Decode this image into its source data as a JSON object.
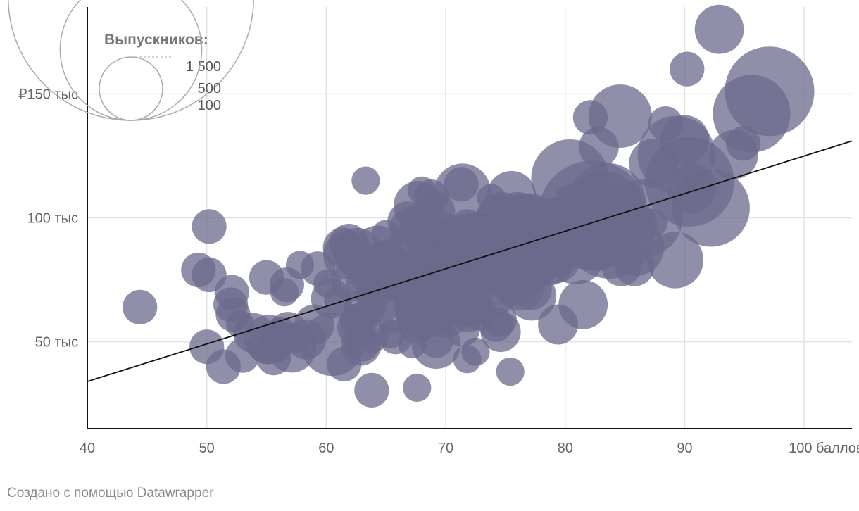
{
  "chart_data": {
    "type": "scatter",
    "title": "",
    "xlabel": "",
    "ylabel": "",
    "xlim": [
      40,
      104
    ],
    "ylim": [
      15,
      185
    ],
    "x_ticks": [
      {
        "value": 40,
        "label": "40"
      },
      {
        "value": 50,
        "label": "50"
      },
      {
        "value": 60,
        "label": "60"
      },
      {
        "value": 70,
        "label": "70"
      },
      {
        "value": 80,
        "label": "80"
      },
      {
        "value": 90,
        "label": "90"
      },
      {
        "value": 100,
        "label": "100 баллов"
      }
    ],
    "y_ticks": [
      {
        "value": 50,
        "label": "50 тыс"
      },
      {
        "value": 100,
        "label": "100 тыс"
      },
      {
        "value": 150,
        "label": "₽150 тыс"
      }
    ],
    "grid": true,
    "point_color": "#6b6a8c",
    "trend_color": "#111111",
    "trendline": {
      "x": [
        40,
        104
      ],
      "y": [
        34,
        131
      ]
    },
    "size_legend": {
      "title": "Выпускников:",
      "placement": "top-left",
      "entries": [
        {
          "value": 1500,
          "label": "1 500"
        },
        {
          "value": 500,
          "label": "500"
        },
        {
          "value": 100,
          "label": "100"
        }
      ]
    },
    "points": [
      [
        44.4,
        64,
        30
      ],
      [
        49.3,
        79,
        30
      ],
      [
        50,
        48,
        30
      ],
      [
        50.2,
        77,
        30
      ],
      [
        50.2,
        96.5,
        30
      ],
      [
        51.4,
        40,
        30
      ],
      [
        52,
        65,
        30
      ],
      [
        52.1,
        70,
        30
      ],
      [
        52.2,
        61,
        30
      ],
      [
        52.8,
        57,
        20
      ],
      [
        53,
        44.5,
        30
      ],
      [
        53.9,
        53.5,
        40
      ],
      [
        55,
        76,
        30
      ],
      [
        55.1,
        49,
        40
      ],
      [
        55.2,
        51,
        60
      ],
      [
        55.6,
        43.5,
        30
      ],
      [
        55.7,
        48.5,
        30
      ],
      [
        56.2,
        53,
        30
      ],
      [
        56.5,
        70,
        20
      ],
      [
        56.7,
        73,
        30
      ],
      [
        56.8,
        54,
        40
      ],
      [
        57.1,
        47.5,
        60
      ],
      [
        57.4,
        51,
        20
      ],
      [
        57.8,
        81,
        20
      ],
      [
        58.3,
        51,
        40
      ],
      [
        59,
        57,
        40
      ],
      [
        59.3,
        79.5,
        30
      ],
      [
        60.1,
        73.5,
        20
      ],
      [
        60.4,
        67.5,
        40
      ],
      [
        60.5,
        49,
        100
      ],
      [
        61,
        66.5,
        20
      ],
      [
        61.4,
        88,
        40
      ],
      [
        61.5,
        41,
        30
      ],
      [
        61.8,
        85,
        60
      ],
      [
        61.9,
        89.5,
        40
      ],
      [
        62.1,
        74.5,
        40
      ],
      [
        62.6,
        56,
        40
      ],
      [
        62.6,
        58.5,
        30
      ],
      [
        62.6,
        82.5,
        30
      ],
      [
        62.6,
        86,
        60
      ],
      [
        62.7,
        58.5,
        30
      ],
      [
        62.8,
        74,
        20
      ],
      [
        62.9,
        64,
        30
      ],
      [
        62.9,
        48.5,
        40
      ],
      [
        63,
        49,
        30
      ],
      [
        63.3,
        115,
        20
      ],
      [
        63.6,
        77.5,
        40
      ],
      [
        63.7,
        67.5,
        20
      ],
      [
        63.8,
        30.5,
        30
      ],
      [
        63.8,
        52.5,
        30
      ],
      [
        63.8,
        63.5,
        20
      ],
      [
        63.8,
        74,
        20
      ],
      [
        63.8,
        78.5,
        40
      ],
      [
        64,
        69.5,
        30
      ],
      [
        64.3,
        87,
        60
      ],
      [
        64.5,
        82.5,
        30
      ],
      [
        64.7,
        66,
        40
      ],
      [
        65,
        93.5,
        20
      ],
      [
        65,
        81,
        60
      ],
      [
        65.1,
        78,
        80
      ],
      [
        65.3,
        77.5,
        60
      ],
      [
        65.4,
        53,
        20
      ],
      [
        65.5,
        60.5,
        30
      ],
      [
        65.8,
        52,
        30
      ],
      [
        66.2,
        75.5,
        60
      ],
      [
        66.4,
        71,
        20
      ],
      [
        66.6,
        82,
        60
      ],
      [
        66.8,
        68.5,
        20
      ],
      [
        66.8,
        98.5,
        40
      ],
      [
        66.9,
        72.5,
        30
      ],
      [
        67,
        82.5,
        100
      ],
      [
        67,
        96,
        40
      ],
      [
        67.2,
        49,
        20
      ],
      [
        67.3,
        60.5,
        30
      ],
      [
        67.3,
        68,
        40
      ],
      [
        67.6,
        57.5,
        40
      ],
      [
        67.6,
        31.5,
        20
      ],
      [
        67.7,
        105,
        60
      ],
      [
        67.9,
        68.5,
        40
      ],
      [
        68,
        111,
        20
      ],
      [
        68.2,
        96.5,
        60
      ],
      [
        68.3,
        64.5,
        100
      ],
      [
        68.4,
        81.5,
        60
      ],
      [
        68.5,
        91,
        30
      ],
      [
        68.8,
        108.5,
        30
      ],
      [
        68.8,
        82,
        60
      ],
      [
        68.8,
        65,
        80
      ],
      [
        68.9,
        71,
        40
      ],
      [
        69,
        73.5,
        150
      ],
      [
        69,
        91.5,
        40
      ],
      [
        69.1,
        102.5,
        40
      ],
      [
        69.2,
        50.5,
        30
      ],
      [
        69.2,
        49,
        60
      ],
      [
        69.4,
        60.5,
        30
      ],
      [
        69.4,
        93,
        60
      ],
      [
        69.5,
        79.5,
        40
      ],
      [
        69.8,
        73,
        60
      ],
      [
        69.8,
        64.5,
        100
      ],
      [
        70.3,
        88.5,
        30
      ],
      [
        70.3,
        66,
        60
      ],
      [
        70.4,
        81.5,
        60
      ],
      [
        70.4,
        67,
        60
      ],
      [
        70.6,
        86,
        80
      ],
      [
        70.8,
        88,
        100
      ],
      [
        70.9,
        82,
        100
      ],
      [
        70.9,
        71,
        60
      ],
      [
        71,
        83.5,
        100
      ],
      [
        71.3,
        113.5,
        30
      ],
      [
        71.4,
        110.5,
        80
      ],
      [
        71.4,
        86,
        80
      ],
      [
        71.4,
        80,
        100
      ],
      [
        71.4,
        55,
        30
      ],
      [
        71.7,
        64.5,
        40
      ],
      [
        71.7,
        90,
        80
      ],
      [
        71.8,
        96.5,
        30
      ],
      [
        71.8,
        43,
        20
      ],
      [
        71.9,
        59.5,
        20
      ],
      [
        72.1,
        74,
        30
      ],
      [
        72.2,
        89,
        60
      ],
      [
        72.3,
        64,
        30
      ],
      [
        72.3,
        70,
        40
      ],
      [
        72.5,
        95.5,
        30
      ],
      [
        72.5,
        46,
        20
      ],
      [
        72.5,
        82,
        60
      ],
      [
        72.8,
        61.5,
        30
      ],
      [
        72.9,
        80,
        60
      ],
      [
        73.3,
        92,
        60
      ],
      [
        73.6,
        93.5,
        40
      ],
      [
        73.6,
        84.5,
        60
      ],
      [
        73.8,
        108,
        20
      ],
      [
        73.8,
        79,
        60
      ],
      [
        73.8,
        71.5,
        80
      ],
      [
        74,
        76.5,
        80
      ],
      [
        74.2,
        57,
        30
      ],
      [
        74.5,
        99,
        60
      ],
      [
        74.5,
        93,
        80
      ],
      [
        74.5,
        59,
        30
      ],
      [
        74.6,
        54,
        40
      ],
      [
        74.7,
        100.5,
        60
      ],
      [
        75,
        82.5,
        60
      ],
      [
        75.4,
        38,
        20
      ],
      [
        75.5,
        109,
        60
      ],
      [
        75.6,
        72.5,
        40
      ],
      [
        75.9,
        92.5,
        80
      ],
      [
        76,
        99,
        80
      ],
      [
        76.2,
        72.5,
        60
      ],
      [
        76.3,
        84,
        30
      ],
      [
        76.3,
        76,
        30
      ],
      [
        76.4,
        78.5,
        60
      ],
      [
        76.5,
        97,
        100
      ],
      [
        76.8,
        80.5,
        30
      ],
      [
        77,
        98.5,
        80
      ],
      [
        77.2,
        68.5,
        60
      ],
      [
        77.2,
        71,
        40
      ],
      [
        77.6,
        86,
        60
      ],
      [
        77.6,
        80.5,
        40
      ],
      [
        77.7,
        97.5,
        40
      ],
      [
        78,
        82,
        40
      ],
      [
        78,
        98,
        60
      ],
      [
        78.4,
        88.5,
        60
      ],
      [
        78.5,
        84,
        80
      ],
      [
        78.9,
        100,
        40
      ],
      [
        79.2,
        83.5,
        60
      ],
      [
        79.4,
        57,
        40
      ],
      [
        79.4,
        91.5,
        60
      ],
      [
        79.6,
        88,
        60
      ],
      [
        79.6,
        97,
        80
      ],
      [
        80.1,
        98,
        60
      ],
      [
        80.4,
        116,
        150
      ],
      [
        80.5,
        106.5,
        30
      ],
      [
        80.6,
        91,
        60
      ],
      [
        80.9,
        84.5,
        80
      ],
      [
        81.2,
        92.5,
        60
      ],
      [
        81.5,
        65,
        60
      ],
      [
        81.8,
        96,
        100
      ],
      [
        82.1,
        140.5,
        30
      ],
      [
        82.3,
        101,
        300
      ],
      [
        82.5,
        97,
        200
      ],
      [
        82.8,
        128.5,
        40
      ],
      [
        82.9,
        99.5,
        150
      ],
      [
        83.3,
        103,
        150
      ],
      [
        83.5,
        106.5,
        150
      ],
      [
        83.7,
        93.5,
        200
      ],
      [
        84,
        100,
        80
      ],
      [
        84.6,
        141,
        100
      ],
      [
        84.7,
        80.5,
        40
      ],
      [
        85.3,
        97,
        40
      ],
      [
        85.8,
        80.5,
        40
      ],
      [
        85.9,
        88,
        80
      ],
      [
        86,
        98,
        40
      ],
      [
        86.6,
        100,
        150
      ],
      [
        87.4,
        98,
        20
      ],
      [
        87.4,
        122,
        60
      ],
      [
        88.4,
        138,
        30
      ],
      [
        89.2,
        83,
        80
      ],
      [
        89.3,
        125.5,
        150
      ],
      [
        90,
        131.5,
        60
      ],
      [
        90.2,
        160,
        30
      ],
      [
        90.4,
        114.5,
        200
      ],
      [
        90.6,
        112,
        60
      ],
      [
        92.2,
        104,
        150
      ],
      [
        92.9,
        176,
        60
      ],
      [
        94.1,
        125.5,
        60
      ],
      [
        94.9,
        130,
        30
      ],
      [
        95.6,
        142,
        150
      ],
      [
        97.1,
        151,
        200
      ]
    ]
  },
  "footer": {
    "credit": "Создано с помощью Datawrapper"
  }
}
